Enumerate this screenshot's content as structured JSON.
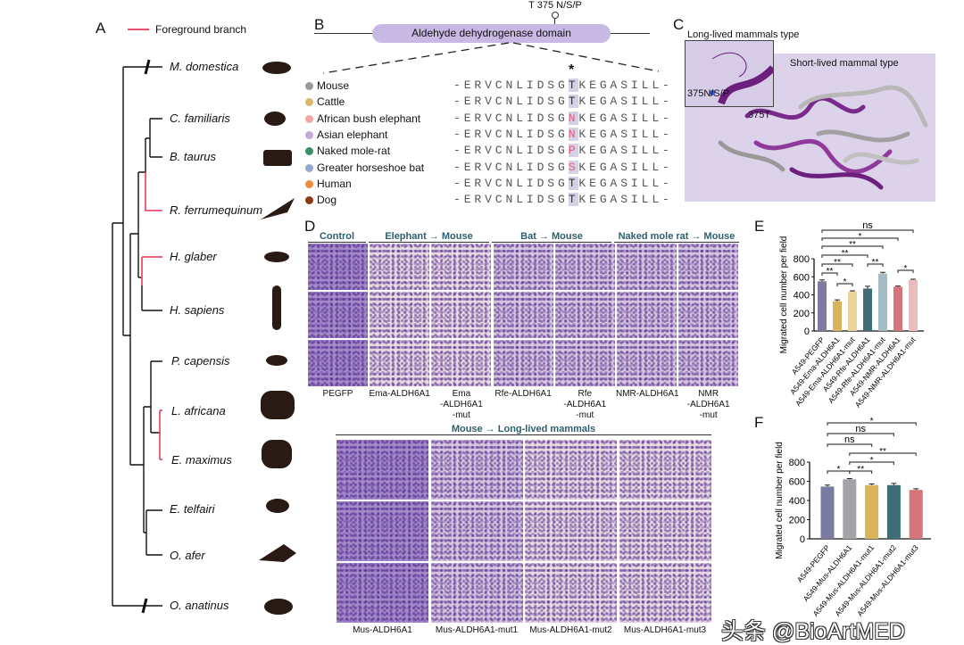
{
  "panel_labels": {
    "a": "A",
    "b": "B",
    "c": "C",
    "d": "D",
    "e": "E",
    "f": "F"
  },
  "tree": {
    "legend": "Foreground branch",
    "foreground_color": "#e8506e",
    "species": [
      "M. domestica",
      "C. familiaris",
      "B. taurus",
      "R. ferrumequinum",
      "H. glaber",
      "H. sapiens",
      "P. capensis",
      "L. africana",
      "E. maximus",
      "E. telfairi",
      "O. afer",
      "O. anatinus"
    ]
  },
  "domain": {
    "site_label": "T 375 N/S/P",
    "name": "Aldehyde dehydrogenase domain",
    "asterisk": "*",
    "color": "#c7b8e4"
  },
  "alignment": [
    {
      "species": "Mouse",
      "color": "#9a9a9a",
      "prefix": "-ERVCNLIDSG",
      "site": "T",
      "suffix": "KEGASILL-",
      "site_color": "#333333"
    },
    {
      "species": "Cattle",
      "color": "#d7b66e",
      "prefix": "-ERVCNLIDSG",
      "site": "T",
      "suffix": "KEGASILL-",
      "site_color": "#333333"
    },
    {
      "species": "African bush elephant",
      "color": "#f2a8a0",
      "prefix": "-ERVCNLIDSG",
      "site": "N",
      "suffix": "KEGASILL-",
      "site_color": "#e0607e"
    },
    {
      "species": "Asian elephant",
      "color": "#c3a9dc",
      "prefix": "-ERVCNLIDSG",
      "site": "N",
      "suffix": "KEGASILL-",
      "site_color": "#e0607e"
    },
    {
      "species": "Naked mole-rat",
      "color": "#3f8f66",
      "prefix": "-ERVCNLIDSG",
      "site": "P",
      "suffix": "KEGASILL-",
      "site_color": "#e0607e"
    },
    {
      "species": "Greater horseshoe bat",
      "color": "#92a9d0",
      "prefix": "-ERVCNLIDSG",
      "site": "S",
      "suffix": "KEGASILL-",
      "site_color": "#e0607e"
    },
    {
      "species": "Human",
      "color": "#f28a3c",
      "prefix": "-ERVCNLIDSG",
      "site": "T",
      "suffix": "KEGASILL-",
      "site_color": "#333333"
    },
    {
      "species": "Dog",
      "color": "#8a3a14",
      "prefix": "-ERVCNLIDSG",
      "site": "T",
      "suffix": "KEGASILL-",
      "site_color": "#333333"
    }
  ],
  "structure": {
    "inset_title": "Long-lived mammals type",
    "main_title": "Short-lived mammal type",
    "inset_site": "375N/S/P",
    "main_site": "375T"
  },
  "migration_top": {
    "headers": [
      "Control",
      "Elephant → Mouse",
      "Bat → Mouse",
      "Naked mole rat → Mouse"
    ],
    "columns": [
      "PEGFP",
      "Ema-ALDH6A1",
      "Ema\n-ALDH6A1\n-mut",
      "Rfe-ALDH6A1",
      "Rfe\n-ALDH6A1\n-mut",
      "NMR-ALDH6A1",
      "NMR\n-ALDH6A1\n-mut"
    ]
  },
  "migration_bottom": {
    "header": "Mouse → Long-lived mammals",
    "columns": [
      "Mus-ALDH6A1",
      "Mus-ALDH6A1-mut1",
      "Mus-ALDH6A1-mut2",
      "Mus-ALDH6A1-mut3"
    ]
  },
  "chart_data": [
    {
      "type": "bar",
      "panel": "E",
      "ylabel": "Migrated cell number per field",
      "xlabel": "",
      "ylim": [
        0,
        800
      ],
      "yticks": [
        0,
        200,
        400,
        600,
        800
      ],
      "categories": [
        "A549-PEGFP",
        "A549-Ema-ALDH6A1",
        "A549-Ema-ALDH6A1-mut",
        "A549-Rfe-ALDH6A1",
        "A549-Rfe-ALDH6A1-mut",
        "A549-NMR-ALDH6A1",
        "A549-NMR-ALDH6A1-mut"
      ],
      "values": [
        550,
        330,
        435,
        470,
        635,
        490,
        565
      ],
      "errors": [
        15,
        15,
        10,
        25,
        15,
        8,
        8
      ],
      "colors": [
        "#7f7aa0",
        "#d9b45a",
        "#ecd49a",
        "#3f6e78",
        "#a6bcc4",
        "#d4757a",
        "#ebbcbe"
      ],
      "significance": [
        {
          "from": 0,
          "to": 6,
          "label": "ns"
        },
        {
          "from": 0,
          "to": 5,
          "label": "*"
        },
        {
          "from": 0,
          "to": 4,
          "label": "**"
        },
        {
          "from": 0,
          "to": 3,
          "label": "**"
        },
        {
          "from": 0,
          "to": 2,
          "label": "**"
        },
        {
          "from": 0,
          "to": 1,
          "label": "**"
        },
        {
          "from": 1,
          "to": 2,
          "label": "*"
        },
        {
          "from": 3,
          "to": 4,
          "label": "**"
        },
        {
          "from": 5,
          "to": 6,
          "label": "*"
        }
      ]
    },
    {
      "type": "bar",
      "panel": "F",
      "ylabel": "Migrated cell number per field",
      "xlabel": "",
      "ylim": [
        0,
        800
      ],
      "yticks": [
        0,
        200,
        400,
        600,
        800
      ],
      "categories": [
        "A549-PEGFP",
        "A549-Mus-ALDH6A1",
        "A549-Mus-ALDH6A1-mut1",
        "A549-Mus-ALDH6A1-mut2",
        "A549-Mus-ALDH6A1-mut3"
      ],
      "values": [
        545,
        620,
        560,
        560,
        510
      ],
      "errors": [
        15,
        8,
        12,
        18,
        12
      ],
      "colors": [
        "#7b7b9f",
        "#a3a3a8",
        "#d9b45a",
        "#3f6e78",
        "#d4757a"
      ],
      "significance": [
        {
          "from": 0,
          "to": 4,
          "label": "*"
        },
        {
          "from": 0,
          "to": 3,
          "label": "ns"
        },
        {
          "from": 0,
          "to": 2,
          "label": "ns"
        },
        {
          "from": 1,
          "to": 4,
          "label": "**"
        },
        {
          "from": 1,
          "to": 3,
          "label": "*"
        },
        {
          "from": 1,
          "to": 2,
          "label": "**"
        },
        {
          "from": 0,
          "to": 1,
          "label": "*"
        }
      ]
    }
  ],
  "watermark": "头条 @BioArtMED"
}
